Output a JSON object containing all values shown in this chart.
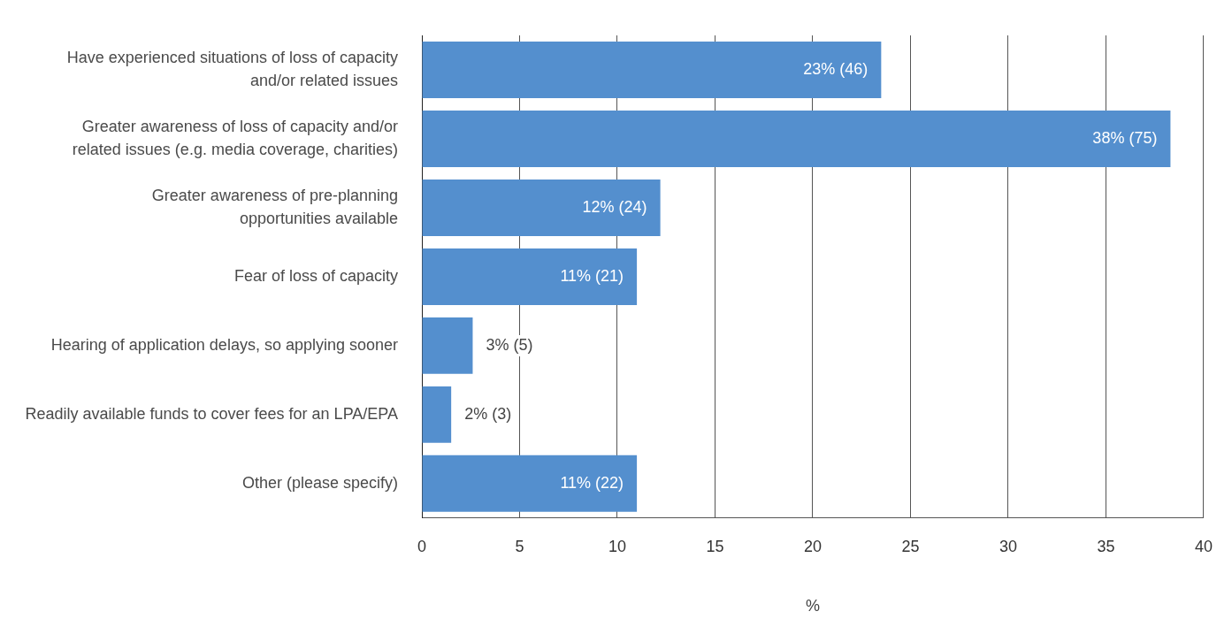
{
  "chart_data": {
    "type": "bar",
    "orientation": "horizontal",
    "xlabel": "%",
    "categories": [
      "Have experienced situations of loss of capacity and/or related issues",
      "Greater awareness of loss of capacity and/or related issues (e.g. media coverage, charities)",
      "Greater awareness of pre-planning opportunities available",
      "Fear of loss of capacity",
      "Hearing of application delays, so applying sooner",
      "Readily available funds to cover fees for an LPA/EPA",
      "Other (please specify)"
    ],
    "values": [
      23.5,
      38.3,
      12.2,
      11,
      2.6,
      1.5,
      11
    ],
    "color": "#548fce",
    "value_labels": [
      "23% (46)",
      "38% (75)",
      "12% (24)",
      "11% (21)",
      "3% (5)",
      "2% (3)",
      "11% (22)"
    ],
    "xlim": [
      0,
      40
    ],
    "xticks": [
      0,
      5,
      10,
      15,
      20,
      25,
      30,
      35,
      40
    ],
    "grid": "x"
  }
}
